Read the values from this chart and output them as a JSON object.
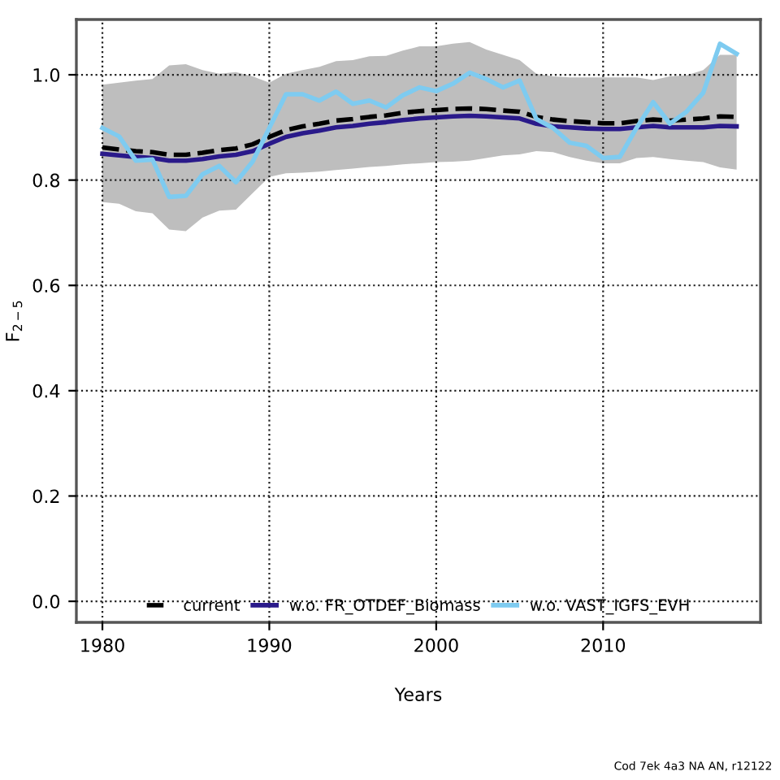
{
  "chart_data": {
    "type": "line",
    "xlabel": "Years",
    "ylabel": "F$_{2−5}$",
    "x": [
      1980,
      1981,
      1982,
      1983,
      1984,
      1985,
      1986,
      1987,
      1988,
      1989,
      1990,
      1991,
      1992,
      1993,
      1994,
      1995,
      1996,
      1997,
      1998,
      1999,
      2000,
      2001,
      2002,
      2003,
      2004,
      2005,
      2006,
      2007,
      2008,
      2009,
      2010,
      2011,
      2012,
      2013,
      2014,
      2015,
      2016,
      2017,
      2018
    ],
    "series": [
      {
        "name": "current",
        "color": "#000000",
        "line_style": "dashed",
        "values": [
          0.862,
          0.858,
          0.855,
          0.853,
          0.848,
          0.848,
          0.852,
          0.857,
          0.86,
          0.868,
          0.882,
          0.895,
          0.902,
          0.907,
          0.913,
          0.916,
          0.92,
          0.923,
          0.928,
          0.931,
          0.933,
          0.935,
          0.936,
          0.935,
          0.932,
          0.93,
          0.92,
          0.915,
          0.912,
          0.91,
          0.908,
          0.908,
          0.912,
          0.915,
          0.913,
          0.915,
          0.917,
          0.921,
          0.92
        ],
        "lower": [
          0.758,
          0.755,
          0.741,
          0.737,
          0.706,
          0.703,
          0.729,
          0.742,
          0.744,
          0.775,
          0.806,
          0.813,
          0.814,
          0.816,
          0.819,
          0.822,
          0.825,
          0.827,
          0.83,
          0.832,
          0.834,
          0.835,
          0.837,
          0.842,
          0.847,
          0.849,
          0.855,
          0.853,
          0.844,
          0.837,
          0.832,
          0.832,
          0.842,
          0.844,
          0.84,
          0.837,
          0.834,
          0.824,
          0.82
        ],
        "upper": [
          0.981,
          0.985,
          0.989,
          0.992,
          1.018,
          1.02,
          1.009,
          1.002,
          1.005,
          0.997,
          0.985,
          1.002,
          1.009,
          1.015,
          1.026,
          1.028,
          1.035,
          1.036,
          1.046,
          1.054,
          1.054,
          1.059,
          1.062,
          1.048,
          1.038,
          1.028,
          1.002,
          0.997,
          0.995,
          0.995,
          0.995,
          0.995,
          0.995,
          0.99,
          0.997,
          0.999,
          1.009,
          1.038,
          1.038
        ]
      },
      {
        "name": "w.o. FR_OTDEF_Biomass",
        "color": "#2a1a8a",
        "line_style": "solid",
        "values": [
          0.85,
          0.847,
          0.844,
          0.842,
          0.837,
          0.837,
          0.84,
          0.845,
          0.848,
          0.855,
          0.869,
          0.882,
          0.889,
          0.894,
          0.9,
          0.903,
          0.907,
          0.91,
          0.914,
          0.917,
          0.919,
          0.921,
          0.922,
          0.921,
          0.919,
          0.917,
          0.907,
          0.902,
          0.9,
          0.898,
          0.897,
          0.897,
          0.9,
          0.903,
          0.9,
          0.9,
          0.9,
          0.903,
          0.902
        ]
      },
      {
        "name": "w.o. VAST_IGFS_EVH",
        "color": "#7ecbf0",
        "line_style": "solid",
        "values": [
          0.899,
          0.883,
          0.837,
          0.839,
          0.768,
          0.77,
          0.811,
          0.827,
          0.796,
          0.835,
          0.899,
          0.963,
          0.963,
          0.951,
          0.968,
          0.945,
          0.951,
          0.938,
          0.961,
          0.976,
          0.969,
          0.983,
          1.004,
          0.992,
          0.976,
          0.989,
          0.916,
          0.899,
          0.871,
          0.865,
          0.842,
          0.844,
          0.899,
          0.948,
          0.907,
          0.93,
          0.966,
          1.059,
          1.04
        ]
      }
    ],
    "xlim": [
      1978.44,
      2019.43
    ],
    "xticks": [
      1980,
      1990,
      2000,
      2010
    ],
    "ylim": [
      -0.04,
      1.105
    ],
    "yticks": [
      {
        "value": 0,
        "label": "0.0"
      },
      {
        "value": 0.2,
        "label": "0.2"
      },
      {
        "value": 0.4,
        "label": "0.4"
      },
      {
        "value": 0.6,
        "label": "0.6"
      },
      {
        "value": 0.8,
        "label": "0.8"
      },
      {
        "value": 1,
        "label": "1.0"
      }
    ],
    "grid": true,
    "legend": "bottom",
    "annotations": [
      "Cod 7ek 4a3 NA AN, r12122"
    ]
  }
}
